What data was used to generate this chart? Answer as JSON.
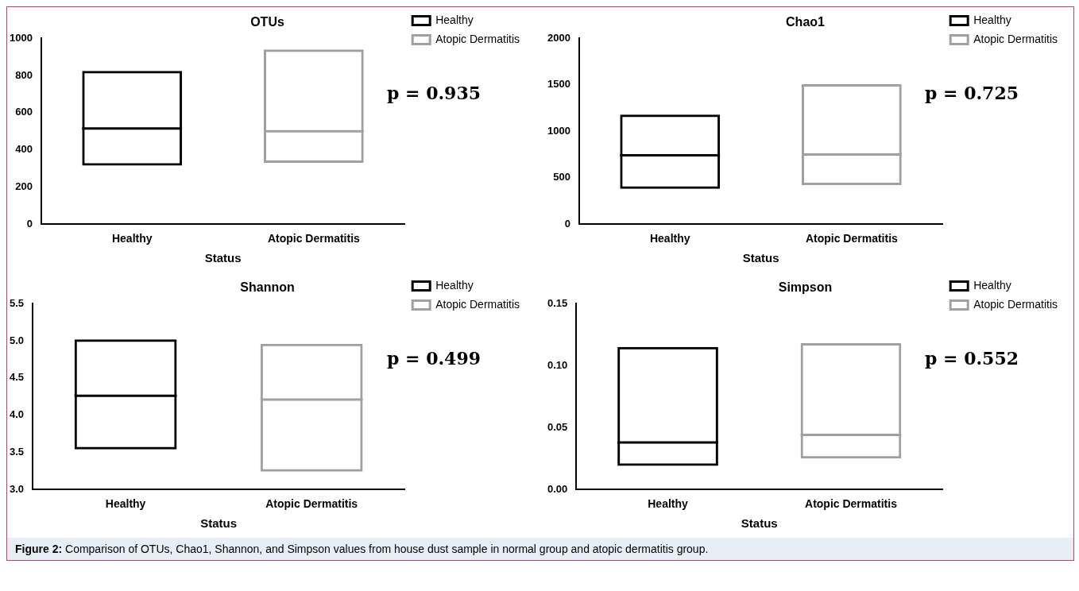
{
  "chart_data": [
    {
      "type": "box",
      "title": "OTUs",
      "xlabel": "Status",
      "categories": [
        "Healthy",
        "Atopic Dermatitis"
      ],
      "ylim": [
        0,
        1000
      ],
      "yticks": [
        0,
        200,
        400,
        600,
        800,
        1000
      ],
      "grid": false,
      "legend": "right",
      "annotations": [
        "p = 0.935"
      ],
      "series": [
        {
          "name": "Healthy",
          "color": "#000000",
          "boxes": [
            {
              "low": 315,
              "q1": 315,
              "median": 515,
              "q3": 825,
              "high": 825
            },
            null
          ]
        },
        {
          "name": "Atopic Dermatitis",
          "color": "#a0a0a0",
          "boxes": [
            null,
            {
              "low": 330,
              "q1": 330,
              "median": 500,
              "q3": 940,
              "high": 940
            }
          ]
        }
      ]
    },
    {
      "type": "box",
      "title": "Chao1",
      "xlabel": "Status",
      "categories": [
        "Healthy",
        "Atopic Dermatitis"
      ],
      "ylim": [
        0,
        2000
      ],
      "yticks": [
        0,
        500,
        1000,
        1500,
        2000
      ],
      "grid": false,
      "legend": "right",
      "annotations": [
        "p = 0.725"
      ],
      "series": [
        {
          "name": "Healthy",
          "color": "#000000",
          "boxes": [
            {
              "low": 380,
              "q1": 380,
              "median": 740,
              "q3": 1180,
              "high": 1180
            },
            null
          ]
        },
        {
          "name": "Atopic Dermatitis",
          "color": "#a0a0a0",
          "boxes": [
            null,
            {
              "low": 420,
              "q1": 420,
              "median": 750,
              "q3": 1505,
              "high": 1505
            }
          ]
        }
      ]
    },
    {
      "type": "box",
      "title": "Shannon",
      "xlabel": "Status",
      "categories": [
        "Healthy",
        "Atopic Dermatitis"
      ],
      "ylim": [
        3,
        5.5
      ],
      "yticks": [
        {
          "value": 3,
          "label": "3.0"
        },
        3.5,
        {
          "value": 4,
          "label": "4.0"
        },
        4.5,
        {
          "value": 5,
          "label": "5.0"
        },
        5.5
      ],
      "grid": false,
      "legend": "right",
      "annotations": [
        "p = 0.499"
      ],
      "series": [
        {
          "name": "Healthy",
          "color": "#000000",
          "boxes": [
            {
              "low": 3.54,
              "q1": 3.54,
              "median": 4.26,
              "q3": 5.02,
              "high": 5.02
            },
            null
          ]
        },
        {
          "name": "Atopic Dermatitis",
          "color": "#a0a0a0",
          "boxes": [
            null,
            {
              "low": 3.24,
              "q1": 3.24,
              "median": 4.21,
              "q3": 4.96,
              "high": 4.96
            }
          ]
        }
      ]
    },
    {
      "type": "box",
      "title": "Simpson",
      "xlabel": "Status",
      "categories": [
        "Healthy",
        "Atopic Dermatitis"
      ],
      "ylim": [
        0,
        0.15
      ],
      "yticks": [
        {
          "value": 0,
          "label": "0.00"
        },
        {
          "value": 0.05,
          "label": "0.05"
        },
        {
          "value": 0.1,
          "label": "0.10"
        },
        {
          "value": 0.15,
          "label": "0.15"
        }
      ],
      "grid": false,
      "legend": "right",
      "annotations": [
        "p = 0.552"
      ],
      "series": [
        {
          "name": "Healthy",
          "color": "#000000",
          "boxes": [
            {
              "low": 0.019,
              "q1": 0.019,
              "median": 0.038,
              "q3": 0.115,
              "high": 0.115
            },
            null
          ]
        },
        {
          "name": "Atopic Dermatitis",
          "color": "#a0a0a0",
          "boxes": [
            null,
            {
              "low": 0.025,
              "q1": 0.025,
              "median": 0.044,
              "q3": 0.118,
              "high": 0.118
            }
          ]
        }
      ]
    },
    {
      "type": "other",
      "annotations": [
        "Figure 2: Comparison of OTUs, Chao1, Shannon, and Simpson values from house dust sample in normal group and atopic dermatitis group."
      ]
    }
  ]
}
